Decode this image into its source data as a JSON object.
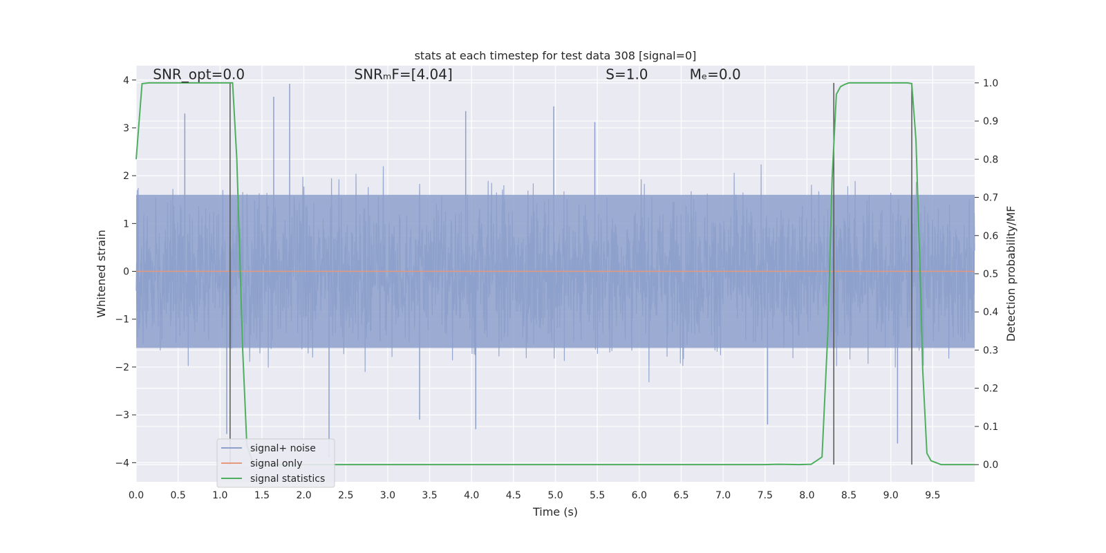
{
  "chart_data": {
    "type": "line",
    "title": "stats at each timestep for test data 308 [signal=0]",
    "xlabel": "Time (s)",
    "ylabel": "Whitened strain",
    "y2label": "Detection probability/MF",
    "xlim": [
      0.0,
      10.0
    ],
    "ylim": [
      -4.4,
      4.3
    ],
    "y2lim": [
      -0.045,
      1.045
    ],
    "x_ticks": [
      0.0,
      0.5,
      1.0,
      1.5,
      2.0,
      2.5,
      3.0,
      3.5,
      4.0,
      4.5,
      5.0,
      5.5,
      6.0,
      6.5,
      7.0,
      7.5,
      8.0,
      8.5,
      9.0,
      9.5
    ],
    "x_tick_labels": [
      "0.0",
      "0.5",
      "1.0",
      "1.5",
      "2.0",
      "2.5",
      "3.0",
      "3.5",
      "4.0",
      "4.5",
      "5.0",
      "5.5",
      "6.0",
      "6.5",
      "7.0",
      "7.5",
      "8.0",
      "8.5",
      "9.0",
      "9.5"
    ],
    "y_ticks": [
      4,
      3,
      2,
      1,
      0,
      -1,
      -2,
      -3,
      -4
    ],
    "y_tick_labels": [
      "4",
      "3",
      "2",
      "1",
      "0",
      "−1",
      "−2",
      "−3",
      "−4"
    ],
    "y2_ticks": [
      1.0,
      0.9,
      0.8,
      0.7,
      0.6,
      0.5,
      0.4,
      0.3,
      0.2,
      0.1,
      0.0
    ],
    "y2_tick_labels": [
      "1.0",
      "0.9",
      "0.8",
      "0.7",
      "0.6",
      "0.5",
      "0.4",
      "0.3",
      "0.2",
      "0.1",
      "0.0"
    ],
    "grid": true,
    "legend_position": "lower-left",
    "annotations": [
      {
        "id": "snr-opt",
        "text": "SNR_opt=0.0",
        "x": 0.2,
        "y": 4.12
      },
      {
        "id": "snr-mf",
        "text": "SNRₘF=[4.04]",
        "x": 2.6,
        "y": 4.12
      },
      {
        "id": "s-value",
        "text": "S=1.0",
        "x": 5.6,
        "y": 4.12
      },
      {
        "id": "mc-value",
        "text": "Mₑ=0.0",
        "x": 6.6,
        "y": 4.12
      }
    ],
    "vertical_markers": [
      {
        "x": 1.12,
        "y2_from": 0.0,
        "y2_to": 1.0
      },
      {
        "x": 8.32,
        "y2_from": 0.0,
        "y2_to": 1.0
      },
      {
        "x": 9.25,
        "y2_from": 0.0,
        "y2_to": 1.0
      }
    ],
    "series": [
      {
        "name": "signal+ noise",
        "color": "#8da0cb",
        "axis": "left",
        "description_kind": "noise",
        "x_range": [
          0.0,
          10.0
        ],
        "band_typical": [
          -1.6,
          1.6
        ],
        "peaks": [
          {
            "x": 1.83,
            "y": 3.92
          },
          {
            "x": 1.64,
            "y": 3.65
          },
          {
            "x": 0.58,
            "y": 3.3
          },
          {
            "x": 5.47,
            "y": 3.12
          },
          {
            "x": 4.98,
            "y": 3.45
          },
          {
            "x": 3.93,
            "y": 3.35
          },
          {
            "x": 2.3,
            "y": -3.9
          },
          {
            "x": 1.08,
            "y": -3.4
          },
          {
            "x": 4.05,
            "y": -3.3
          },
          {
            "x": 9.08,
            "y": -3.6
          },
          {
            "x": 7.53,
            "y": -3.2
          },
          {
            "x": 3.38,
            "y": -3.1
          }
        ]
      },
      {
        "name": "signal only",
        "color": "#e5987a",
        "axis": "left",
        "x": [
          0.0,
          10.0
        ],
        "y": [
          0.0,
          0.0
        ]
      },
      {
        "name": "signal statistics",
        "color": "#4daf5e",
        "axis": "right",
        "x": [
          0.0,
          0.07,
          0.15,
          0.3,
          0.5,
          0.8,
          1.0,
          1.1,
          1.15,
          1.2,
          1.27,
          1.32,
          1.4,
          1.6,
          2.0,
          3.0,
          4.0,
          5.0,
          6.0,
          7.0,
          7.5,
          7.65,
          7.9,
          8.05,
          8.1,
          8.18,
          8.25,
          8.3,
          8.35,
          8.4,
          8.45,
          8.5,
          8.7,
          9.0,
          9.2,
          9.25,
          9.3,
          9.35,
          9.38,
          9.43,
          9.48,
          9.6,
          10.0
        ],
        "y": [
          0.8,
          0.998,
          1.0,
          1.0,
          1.0,
          1.0,
          1.0,
          1.0,
          1.0,
          0.8,
          0.3,
          0.05,
          0.0,
          0.0,
          0.0,
          0.0,
          0.0,
          0.0,
          0.0,
          0.0,
          0.0,
          0.001,
          0.0,
          0.001,
          0.008,
          0.02,
          0.35,
          0.75,
          0.97,
          0.99,
          0.996,
          1.0,
          1.0,
          1.0,
          1.0,
          0.998,
          0.85,
          0.5,
          0.25,
          0.03,
          0.01,
          0.0,
          0.0
        ]
      }
    ]
  }
}
